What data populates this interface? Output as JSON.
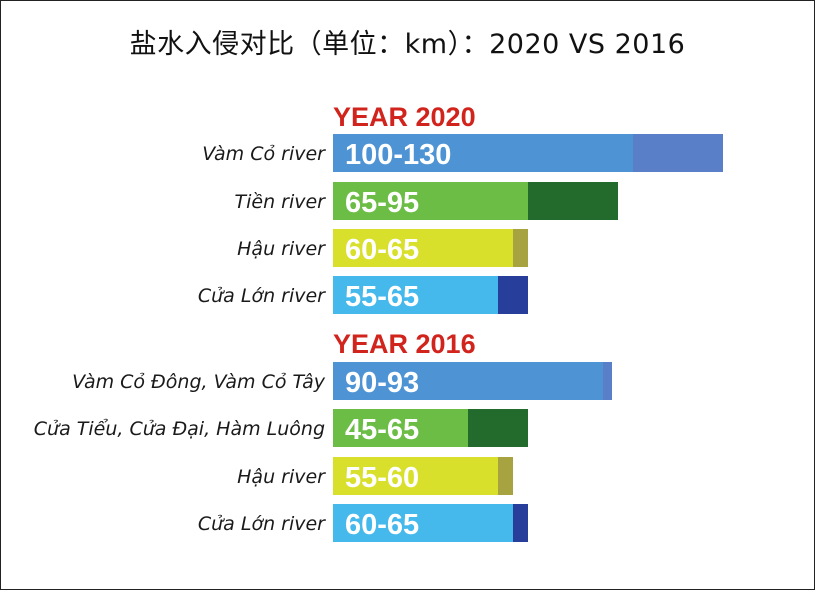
{
  "title": "盐水入侵对比（单位：km）：2020 VS 2016",
  "chart_data": [
    {
      "type": "bar",
      "orientation": "horizontal",
      "stacked_range": true,
      "title": "YEAR 2020",
      "unit": "km",
      "categories": [
        "Vàm Cỏ river",
        "Tiền river",
        "Hậu river",
        "Cửa Lớn river"
      ],
      "value_labels": [
        "100-130",
        "65-95",
        "60-65",
        "55-65"
      ],
      "min": [
        100,
        65,
        60,
        55
      ],
      "max": [
        130,
        95,
        65,
        65
      ],
      "colors": [
        {
          "base": "#4e94d5",
          "range": "#5a7fc9"
        },
        {
          "base": "#6bbd45",
          "range": "#236b2c"
        },
        {
          "base": "#d9e02c",
          "range": "#a7a340"
        },
        {
          "base": "#45b8ec",
          "range": "#273f9a"
        }
      ]
    },
    {
      "type": "bar",
      "orientation": "horizontal",
      "stacked_range": true,
      "title": "YEAR 2016",
      "unit": "km",
      "categories": [
        "Vàm Cỏ Đông, Vàm Cỏ Tây",
        "Cửa Tiểu, Cửa Đại, Hàm Luông",
        "Hậu river",
        "Cửa Lớn river"
      ],
      "value_labels": [
        "90-93",
        "45-65",
        "55-60",
        "60-65"
      ],
      "min": [
        90,
        45,
        55,
        60
      ],
      "max": [
        93,
        65,
        60,
        65
      ],
      "colors": [
        {
          "base": "#4e94d5",
          "range": "#5a7fc9"
        },
        {
          "base": "#6bbd45",
          "range": "#236b2c"
        },
        {
          "base": "#d9e02c",
          "range": "#a7a340"
        },
        {
          "base": "#45b8ec",
          "range": "#273f9a"
        }
      ]
    }
  ]
}
